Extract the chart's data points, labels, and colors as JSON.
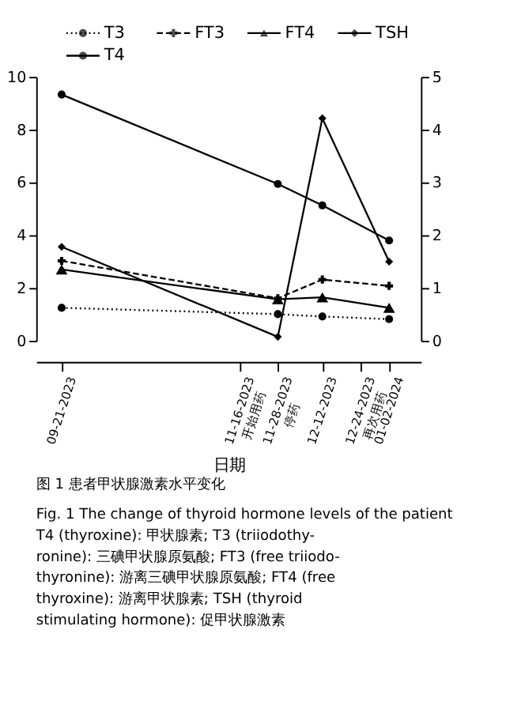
{
  "chart_data": {
    "type": "line",
    "x": [
      "2023-09-21",
      "2023-11-28",
      "2023-12-12",
      "2024-01-02"
    ],
    "xlim": [
      "2023-09-13",
      "2024-01-12"
    ],
    "xticks": [
      {
        "value": "2023-09-21",
        "label": "09-21-2023"
      },
      {
        "value": "2023-11-16",
        "label": "11-16-2023\n开始用药"
      },
      {
        "value": "2023-11-28",
        "label": "11-28-2023\n停药"
      },
      {
        "value": "2023-12-12",
        "label": "12-12-2023"
      },
      {
        "value": "2023-12-24",
        "label": "12-24-2023\n再次用药"
      },
      {
        "value": "2024-01-02",
        "label": "01-02-2024"
      }
    ],
    "ylim": [
      0,
      10
    ],
    "yticks": [
      0,
      2,
      4,
      6,
      8,
      10
    ],
    "y2lim": [
      0,
      5
    ],
    "y2ticks": [
      0,
      1,
      2,
      3,
      4,
      5
    ],
    "xlabel": "日期",
    "series": [
      {
        "name": "T3",
        "color": "#000000",
        "marker": "circle",
        "line_style": "dotted",
        "values": [
          1.25,
          1.01,
          0.92,
          0.82
        ]
      },
      {
        "name": "FT3",
        "color": "#000000",
        "marker": "cross",
        "line_style": "dashed",
        "values": [
          3.03,
          1.61,
          2.32,
          2.08
        ]
      },
      {
        "name": "FT4",
        "color": "#000000",
        "marker": "triangle",
        "line_style": "solid",
        "values": [
          2.7,
          1.57,
          1.65,
          1.25
        ]
      },
      {
        "name": "TSH",
        "color": "#000000",
        "marker": "diamond",
        "line_style": "solid",
        "values": [
          3.56,
          0.15,
          8.43,
          3.0
        ]
      },
      {
        "name": "T4",
        "color": "#000000",
        "marker": "circle",
        "line_style": "solid",
        "values": [
          9.33,
          5.94,
          5.13,
          3.8
        ]
      }
    ],
    "legend": "top",
    "grid": false,
    "annotations": [
      "图 1  患者甲状腺激素水平变化",
      "Fig. 1  The change of thyroid hormone levels of the patient\n            T4 (thyroxine): 甲状腺素; T3 (triiodothy-\n            ronine): 三碘甲状腺原氨酸; FT3 (free triiodo-\n            thyronine): 游离三碘甲状腺原氨酸; FT4 (free\n            thyroxine): 游离甲状腺素; TSH (thyroid\n            stimulating hormone): 促甲状腺激素"
    ]
  }
}
